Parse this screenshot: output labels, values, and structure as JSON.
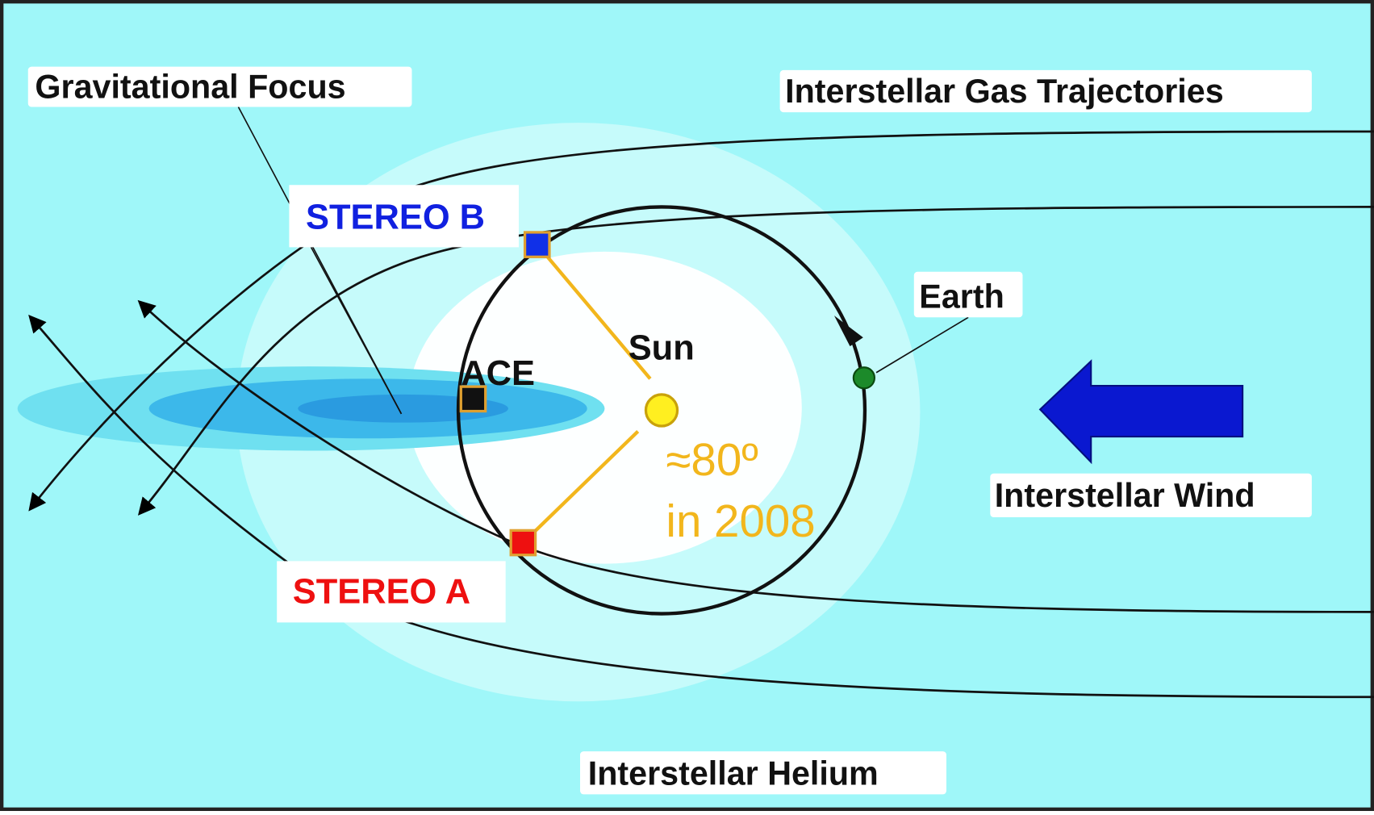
{
  "labels": {
    "focus": "Gravitational Focus",
    "trajectories": "Interstellar Gas Trajectories",
    "stereo_b": "STEREO B",
    "earth": "Earth",
    "sun": "Sun",
    "ace": "ACE",
    "wind": "Interstellar Wind",
    "stereo_a": "STEREO A",
    "helium": "Interstellar Helium"
  },
  "angle": [
    "≈80º",
    "in 2008"
  ]
}
